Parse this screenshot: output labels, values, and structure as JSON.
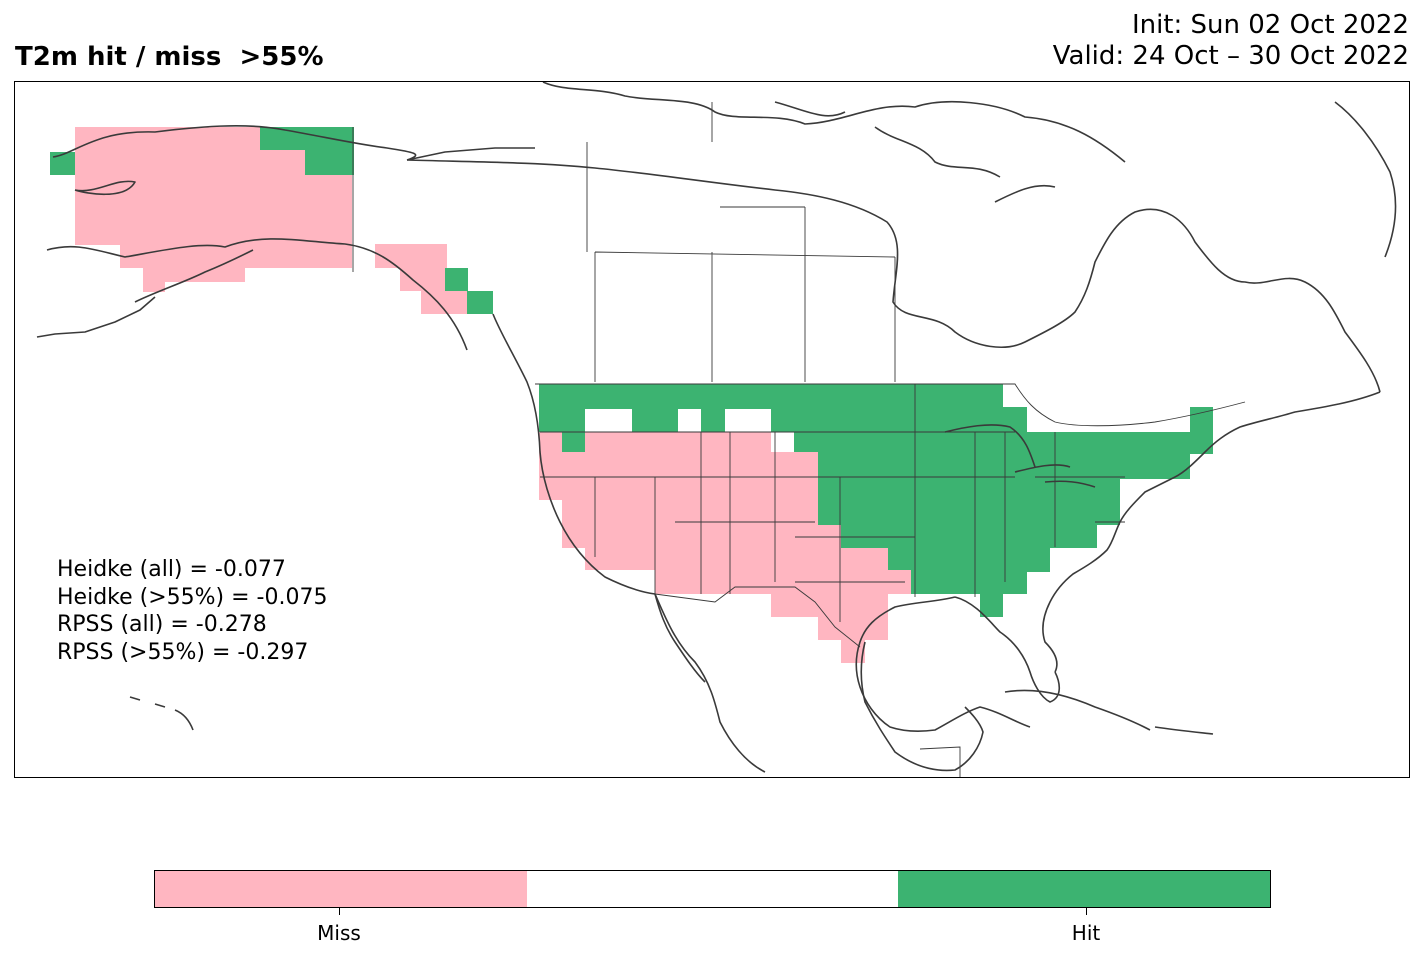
{
  "title": "T2m hit / miss  >55%",
  "init_label": "Init: Sun 02 Oct 2022",
  "valid_label": "Valid: 24 Oct – 30 Oct 2022",
  "stats": {
    "heidke_all": "Heidke (all) = -0.077",
    "heidke_55": "Heidke (>55%) = -0.075",
    "rpss_all": "RPSS (all) = -0.278",
    "rpss_55": "RPSS (>55%) = -0.297"
  },
  "colors": {
    "miss": "#FFB6C1",
    "neutral": "#FFFFFF",
    "hit": "#3CB371",
    "coast": "#3a3a3a"
  },
  "colorbar": {
    "labels": [
      "Miss",
      "Hit"
    ]
  },
  "map_cells": {
    "miss_regions": [
      "alaska",
      "southeast-alaska",
      "us-west",
      "us-southwest",
      "texas"
    ],
    "hit_regions": [
      "north-alaska",
      "pacific-northwest",
      "northern-plains",
      "midwest",
      "east",
      "southeast"
    ]
  }
}
